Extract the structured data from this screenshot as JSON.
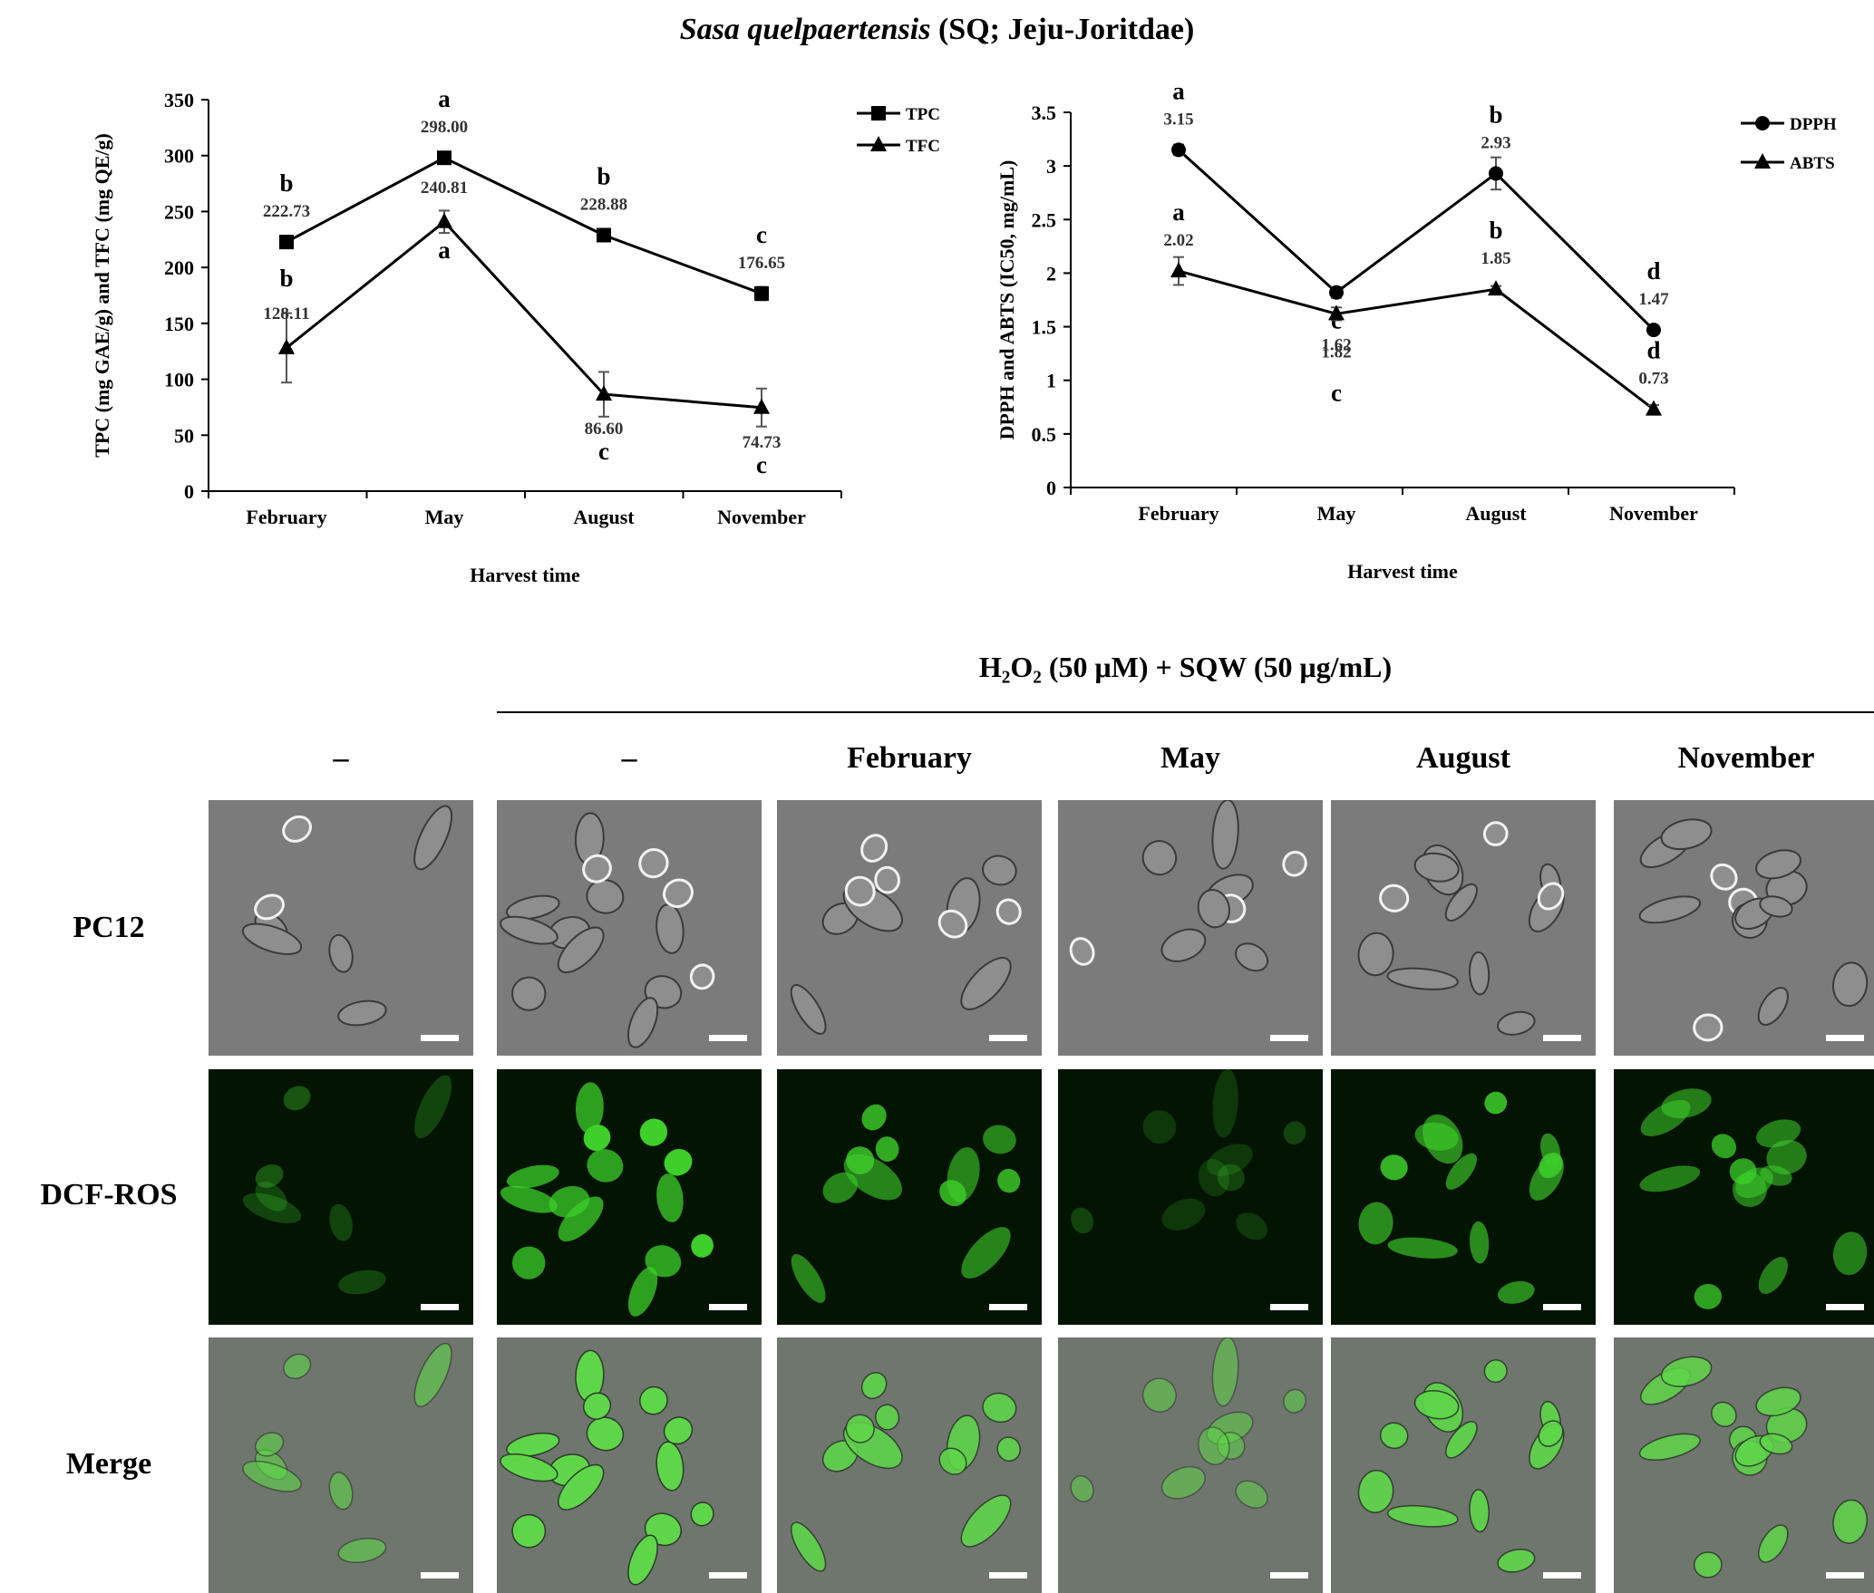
{
  "figure": {
    "title_species": "Sasa quelpaertensis",
    "title_rest": " (SQ; Jeju-Joritdae)"
  },
  "chart_data": [
    {
      "type": "line",
      "xlabel": "Harvest time",
      "ylabel": "TPC (mg GAE/g) and TFC (mg QE/g)",
      "categories": [
        "February",
        "May",
        "August",
        "November"
      ],
      "ylim": [
        0,
        350
      ],
      "yticks": [
        0,
        50,
        100,
        150,
        200,
        250,
        300,
        350
      ],
      "legend_position": "top-right",
      "series": [
        {
          "name": "TPC",
          "marker": "square",
          "values": [
            222.73,
            298.0,
            228.88,
            176.65
          ],
          "value_labels": [
            "222.73",
            "298.00",
            "228.88",
            "176.65"
          ],
          "errors": [
            5,
            3,
            3,
            6
          ],
          "letters": [
            "b",
            "a",
            "b",
            "c"
          ]
        },
        {
          "name": "TFC",
          "marker": "triangle",
          "values": [
            128.11,
            240.81,
            86.6,
            74.73
          ],
          "value_labels": [
            "128.11",
            "240.81",
            "86.60",
            "74.73"
          ],
          "errors": [
            31,
            10,
            20,
            17
          ],
          "letters": [
            "b",
            "a",
            "c",
            "c"
          ]
        }
      ],
      "grid": false
    },
    {
      "type": "line",
      "xlabel": "Harvest time",
      "ylabel": "DPPH and ABTS (IC50, mg/mL)",
      "categories": [
        "February",
        "May",
        "August",
        "November"
      ],
      "ylim": [
        0,
        3.5
      ],
      "yticks": [
        0,
        0.5,
        1,
        1.5,
        2,
        2.5,
        3,
        3.5
      ],
      "ytick_labels": [
        "0",
        "0.5",
        "1",
        "1.5",
        "2",
        "2.5",
        "3",
        "3.5"
      ],
      "legend_position": "top-right",
      "series": [
        {
          "name": "DPPH",
          "marker": "circle",
          "values": [
            3.15,
            1.82,
            2.93,
            1.47
          ],
          "value_labels": [
            "3.15",
            "1.82",
            "2.93",
            "1.47"
          ],
          "errors": [
            0.05,
            0.05,
            0.15,
            0.03
          ],
          "letters": [
            "a",
            "c",
            "b",
            "d"
          ]
        },
        {
          "name": "ABTS",
          "marker": "triangle",
          "values": [
            2.02,
            1.62,
            1.85,
            0.73
          ],
          "value_labels": [
            "2.02",
            "1.62",
            "1.85",
            "0.73"
          ],
          "errors": [
            0.13,
            0.06,
            0.03,
            0.04
          ],
          "letters": [
            "a",
            "c",
            "b",
            "d"
          ]
        }
      ],
      "grid": false
    }
  ],
  "micrographs": {
    "treatment_header": "H₂O₂ (50 μM) + SQW (50 μg/mL)",
    "columns": [
      "–",
      "–",
      "February",
      "May",
      "August",
      "November"
    ],
    "rows": [
      "PC12",
      "DCF-ROS",
      "Merge"
    ],
    "colors": {
      "brightfield": "#7b7b7b",
      "fluorescence_bg": "#031403",
      "fluorescence_cell": "#3ecf2a",
      "merge_bg": "#6f766d",
      "merge_cell": "#5fd64a"
    }
  }
}
